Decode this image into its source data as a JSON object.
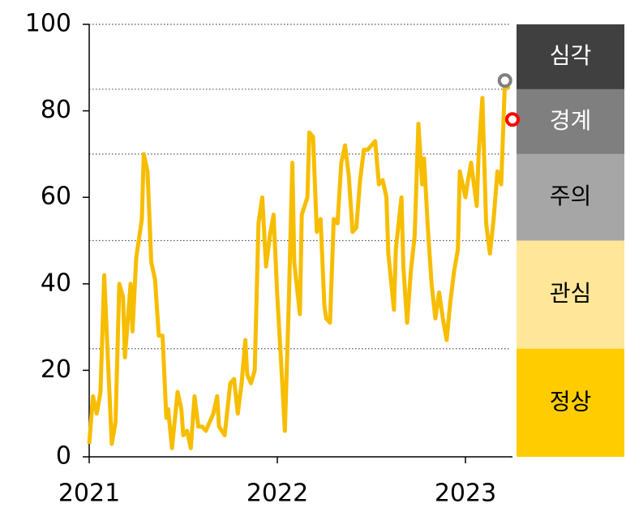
{
  "chart_data": {
    "type": "line",
    "x": [
      2021.0,
      2021.02,
      2021.04,
      2021.06,
      2021.08,
      2021.1,
      2021.12,
      2021.14,
      2021.16,
      2021.18,
      2021.19,
      2021.22,
      2021.23,
      2021.25,
      2021.28,
      2021.29,
      2021.31,
      2021.33,
      2021.35,
      2021.37,
      2021.39,
      2021.41,
      2021.42,
      2021.44,
      2021.47,
      2021.49,
      2021.5,
      2021.52,
      2021.54,
      2021.56,
      2021.58,
      2021.6,
      2021.62,
      2021.64,
      2021.66,
      2021.68,
      2021.69,
      2021.72,
      2021.73,
      2021.75,
      2021.77,
      2021.79,
      2021.81,
      2021.83,
      2021.84,
      2021.86,
      2021.88,
      2021.9,
      2021.92,
      2021.94,
      2021.96,
      2021.98,
      2022.0,
      2022.02,
      2022.04,
      2022.06,
      2022.08,
      2022.09,
      2022.12,
      2022.13,
      2022.16,
      2022.17,
      2022.19,
      2022.21,
      2022.23,
      2022.25,
      2022.26,
      2022.28,
      2022.3,
      2022.32,
      2022.34,
      2022.36,
      2022.38,
      2022.4,
      2022.42,
      2022.44,
      2022.46,
      2022.48,
      2022.5,
      2022.52,
      2022.54,
      2022.56,
      2022.58,
      2022.59,
      2022.62,
      2022.63,
      2022.66,
      2022.67,
      2022.69,
      2022.71,
      2022.73,
      2022.75,
      2022.77,
      2022.78,
      2022.8,
      2022.82,
      2022.84,
      2022.86,
      2022.88,
      2022.9,
      2022.92,
      2022.94,
      2022.96,
      2022.97,
      2023.0,
      2023.01,
      2023.03,
      2023.06,
      2023.07,
      2023.09,
      2023.11,
      2023.13,
      2023.15,
      2023.17,
      2023.19,
      2023.21,
      2023.23
    ],
    "series": [
      {
        "color": "#f7bd00",
        "values": [
          3,
          14,
          10,
          15,
          42,
          22,
          3,
          8,
          40,
          37,
          23,
          40,
          29,
          46,
          55,
          70,
          66,
          45,
          41,
          28,
          28,
          9,
          11,
          2,
          15,
          11,
          5,
          6,
          2,
          14,
          7,
          7,
          6,
          8,
          10,
          14,
          7,
          5,
          9,
          17,
          18,
          10,
          17,
          27,
          19,
          17,
          20,
          54,
          60,
          44,
          51,
          56,
          37,
          22,
          6,
          34,
          68,
          45,
          33,
          56,
          60,
          75,
          74,
          52,
          55,
          35,
          32,
          31,
          55,
          54,
          68,
          72,
          65,
          52,
          53,
          64,
          71,
          71,
          72,
          73,
          63,
          64,
          60,
          47,
          34,
          48,
          60,
          44,
          31,
          43,
          51,
          77,
          63,
          69,
          53,
          40,
          32,
          38,
          32,
          27,
          36,
          43,
          48,
          66,
          60,
          63,
          68,
          58,
          70,
          83,
          54,
          47,
          55,
          66,
          63,
          87,
          85
        ]
      }
    ],
    "markers": [
      {
        "x": 2023.21,
        "y": 87,
        "color": "#808080"
      },
      {
        "x": 2023.25,
        "y": 78,
        "color": "#ff0000"
      }
    ],
    "xlim": [
      2021,
      2023.25
    ],
    "xticks": [
      2021,
      2022,
      2023
    ],
    "ylim": [
      0,
      100
    ],
    "yticks": [
      0,
      20,
      40,
      60,
      80,
      100
    ],
    "bands": [
      {
        "label": "심각",
        "from": 85,
        "to": 100,
        "color": "#404040",
        "text_color": "#ffffff"
      },
      {
        "label": "경계",
        "from": 70,
        "to": 85,
        "color": "#7f7f7f",
        "text_color": "#ffffff"
      },
      {
        "label": "주의",
        "from": 50,
        "to": 70,
        "color": "#a6a6a6",
        "text_color": "#000000"
      },
      {
        "label": "관심",
        "from": 25,
        "to": 50,
        "color": "#ffe699",
        "text_color": "#000000"
      },
      {
        "label": "정상",
        "from": 0,
        "to": 25,
        "color": "#ffcc00",
        "text_color": "#000000"
      }
    ]
  }
}
